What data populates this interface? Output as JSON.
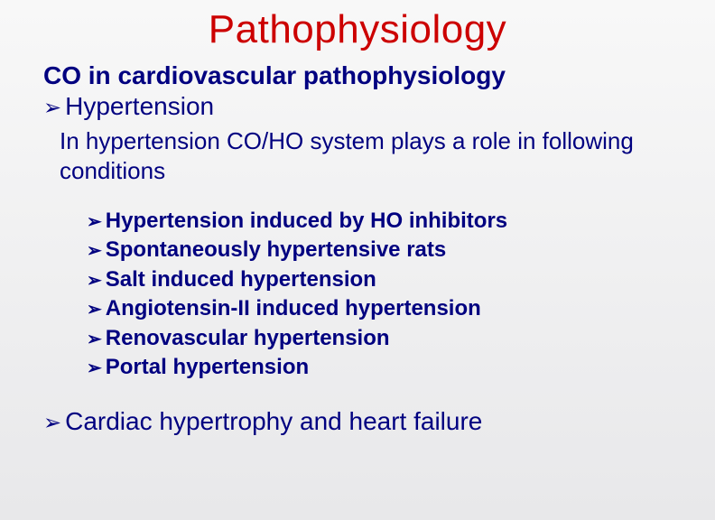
{
  "colors": {
    "title": "#cc0000",
    "body": "#000080",
    "bg_top": "#f8f8f8",
    "bg_bottom": "#e8e8ea"
  },
  "typography": {
    "title_fontsize": 44,
    "subtitle_fontsize": 28,
    "body_fontsize": 26,
    "subitem_fontsize": 24,
    "font_family": "Verdana"
  },
  "bullet_glyph": "➢",
  "title": "Pathophysiology",
  "subtitle": "CO in cardiovascular pathophysiology",
  "main_bullets": {
    "hypertension": "Hypertension",
    "cardiac": "Cardiac hypertrophy and heart failure"
  },
  "body_text": "In hypertension CO/HO system plays a role in following conditions",
  "sub_items": [
    "Hypertension induced by HO inhibitors",
    "Spontaneously hypertensive rats",
    "Salt induced hypertension",
    "Angiotensin-II induced hypertension",
    "Renovascular hypertension",
    "Portal hypertension"
  ]
}
